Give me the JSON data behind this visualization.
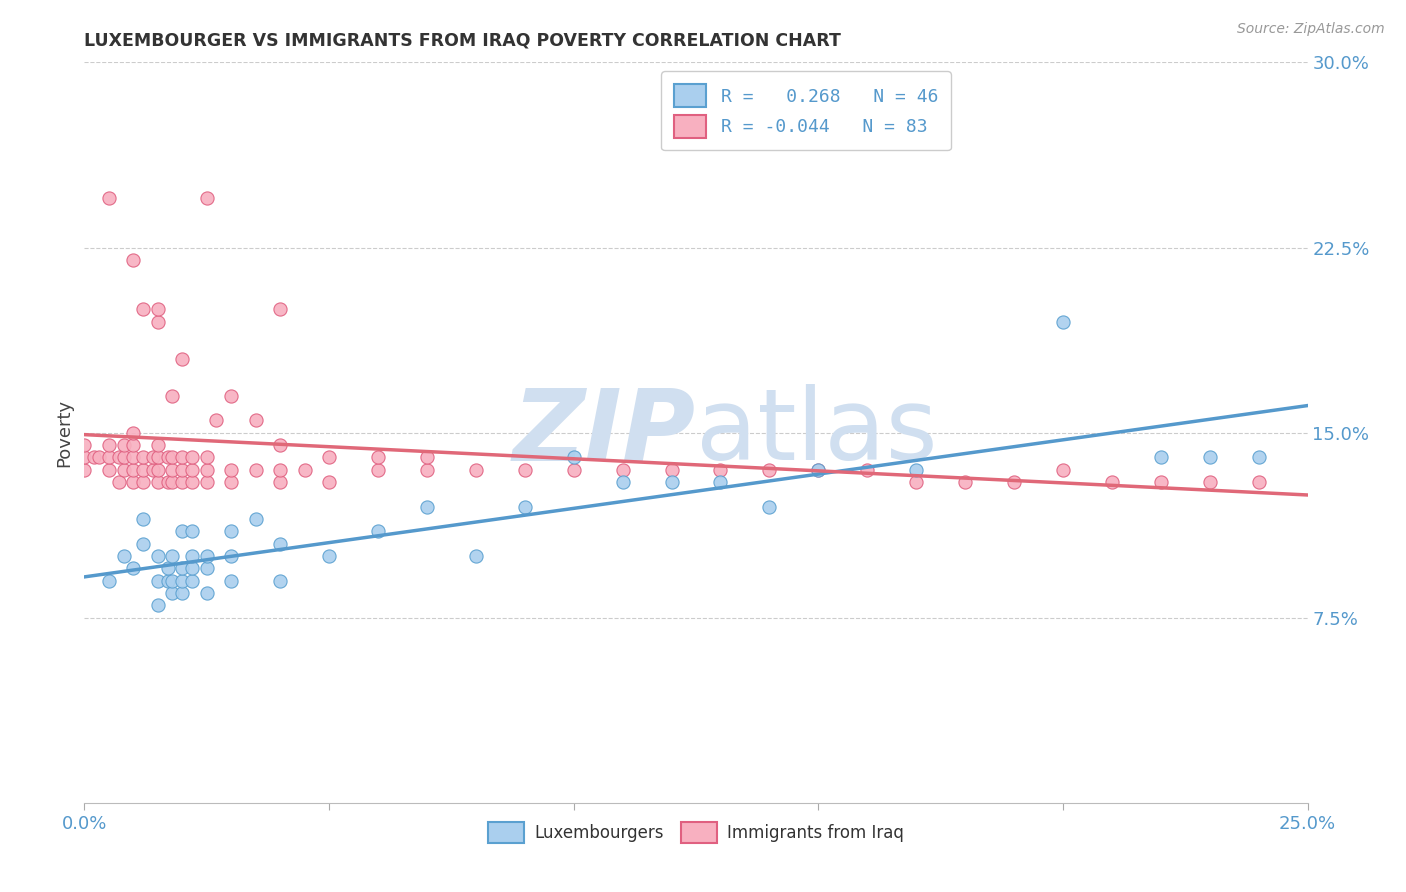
{
  "title": "LUXEMBOURGER VS IMMIGRANTS FROM IRAQ POVERTY CORRELATION CHART",
  "source": "Source: ZipAtlas.com",
  "ylabel": "Poverty",
  "xlim": [
    0,
    0.25
  ],
  "ylim": [
    0,
    0.3
  ],
  "xtick_positions": [
    0.0,
    0.05,
    0.1,
    0.15,
    0.2,
    0.25
  ],
  "xtick_labels": [
    "0.0%",
    "",
    "",
    "",
    "",
    "25.0%"
  ],
  "yticks_right": [
    0.075,
    0.15,
    0.225,
    0.3
  ],
  "ytick_labels_right": [
    "7.5%",
    "15.0%",
    "22.5%",
    "30.0%"
  ],
  "blue_color": "#aacfee",
  "blue_edge_color": "#5aa0d0",
  "blue_line_color": "#5599cc",
  "pink_color": "#f8b0c0",
  "pink_edge_color": "#e06080",
  "pink_line_color": "#e06878",
  "blue_R": 0.268,
  "blue_N": 46,
  "pink_R": -0.044,
  "pink_N": 83,
  "watermark_color": "#d0dff0",
  "watermark_fontsize": 72,
  "blue_scatter_x": [
    0.005,
    0.008,
    0.01,
    0.012,
    0.012,
    0.015,
    0.015,
    0.015,
    0.017,
    0.017,
    0.018,
    0.018,
    0.018,
    0.02,
    0.02,
    0.02,
    0.02,
    0.022,
    0.022,
    0.022,
    0.022,
    0.025,
    0.025,
    0.025,
    0.03,
    0.03,
    0.03,
    0.035,
    0.04,
    0.04,
    0.05,
    0.06,
    0.07,
    0.08,
    0.09,
    0.1,
    0.11,
    0.12,
    0.13,
    0.14,
    0.15,
    0.17,
    0.2,
    0.22,
    0.23,
    0.24
  ],
  "blue_scatter_y": [
    0.09,
    0.1,
    0.095,
    0.105,
    0.115,
    0.08,
    0.09,
    0.1,
    0.09,
    0.095,
    0.085,
    0.09,
    0.1,
    0.085,
    0.09,
    0.095,
    0.11,
    0.09,
    0.095,
    0.1,
    0.11,
    0.085,
    0.095,
    0.1,
    0.09,
    0.1,
    0.11,
    0.115,
    0.09,
    0.105,
    0.1,
    0.11,
    0.12,
    0.1,
    0.12,
    0.14,
    0.13,
    0.13,
    0.13,
    0.12,
    0.135,
    0.135,
    0.195,
    0.14,
    0.14,
    0.14
  ],
  "pink_scatter_x": [
    0.0,
    0.0,
    0.0,
    0.002,
    0.003,
    0.005,
    0.005,
    0.005,
    0.007,
    0.007,
    0.008,
    0.008,
    0.008,
    0.01,
    0.01,
    0.01,
    0.01,
    0.01,
    0.012,
    0.012,
    0.012,
    0.014,
    0.014,
    0.015,
    0.015,
    0.015,
    0.015,
    0.017,
    0.017,
    0.018,
    0.018,
    0.018,
    0.02,
    0.02,
    0.02,
    0.022,
    0.022,
    0.022,
    0.025,
    0.025,
    0.025,
    0.027,
    0.03,
    0.03,
    0.035,
    0.04,
    0.04,
    0.04,
    0.045,
    0.05,
    0.05,
    0.06,
    0.06,
    0.07,
    0.07,
    0.08,
    0.09,
    0.1,
    0.11,
    0.12,
    0.13,
    0.14,
    0.15,
    0.16,
    0.17,
    0.18,
    0.19,
    0.2,
    0.21,
    0.22,
    0.23,
    0.24,
    0.005,
    0.01,
    0.012,
    0.015,
    0.015,
    0.018,
    0.02,
    0.025,
    0.03,
    0.035,
    0.04
  ],
  "pink_scatter_y": [
    0.135,
    0.14,
    0.145,
    0.14,
    0.14,
    0.135,
    0.14,
    0.145,
    0.13,
    0.14,
    0.135,
    0.14,
    0.145,
    0.13,
    0.135,
    0.14,
    0.145,
    0.15,
    0.13,
    0.135,
    0.14,
    0.135,
    0.14,
    0.13,
    0.135,
    0.14,
    0.145,
    0.13,
    0.14,
    0.13,
    0.135,
    0.14,
    0.13,
    0.135,
    0.14,
    0.13,
    0.135,
    0.14,
    0.13,
    0.135,
    0.14,
    0.155,
    0.13,
    0.135,
    0.135,
    0.13,
    0.135,
    0.145,
    0.135,
    0.13,
    0.14,
    0.135,
    0.14,
    0.135,
    0.14,
    0.135,
    0.135,
    0.135,
    0.135,
    0.135,
    0.135,
    0.135,
    0.135,
    0.135,
    0.13,
    0.13,
    0.13,
    0.135,
    0.13,
    0.13,
    0.13,
    0.13,
    0.245,
    0.22,
    0.2,
    0.195,
    0.2,
    0.165,
    0.18,
    0.245,
    0.165,
    0.155,
    0.2
  ]
}
